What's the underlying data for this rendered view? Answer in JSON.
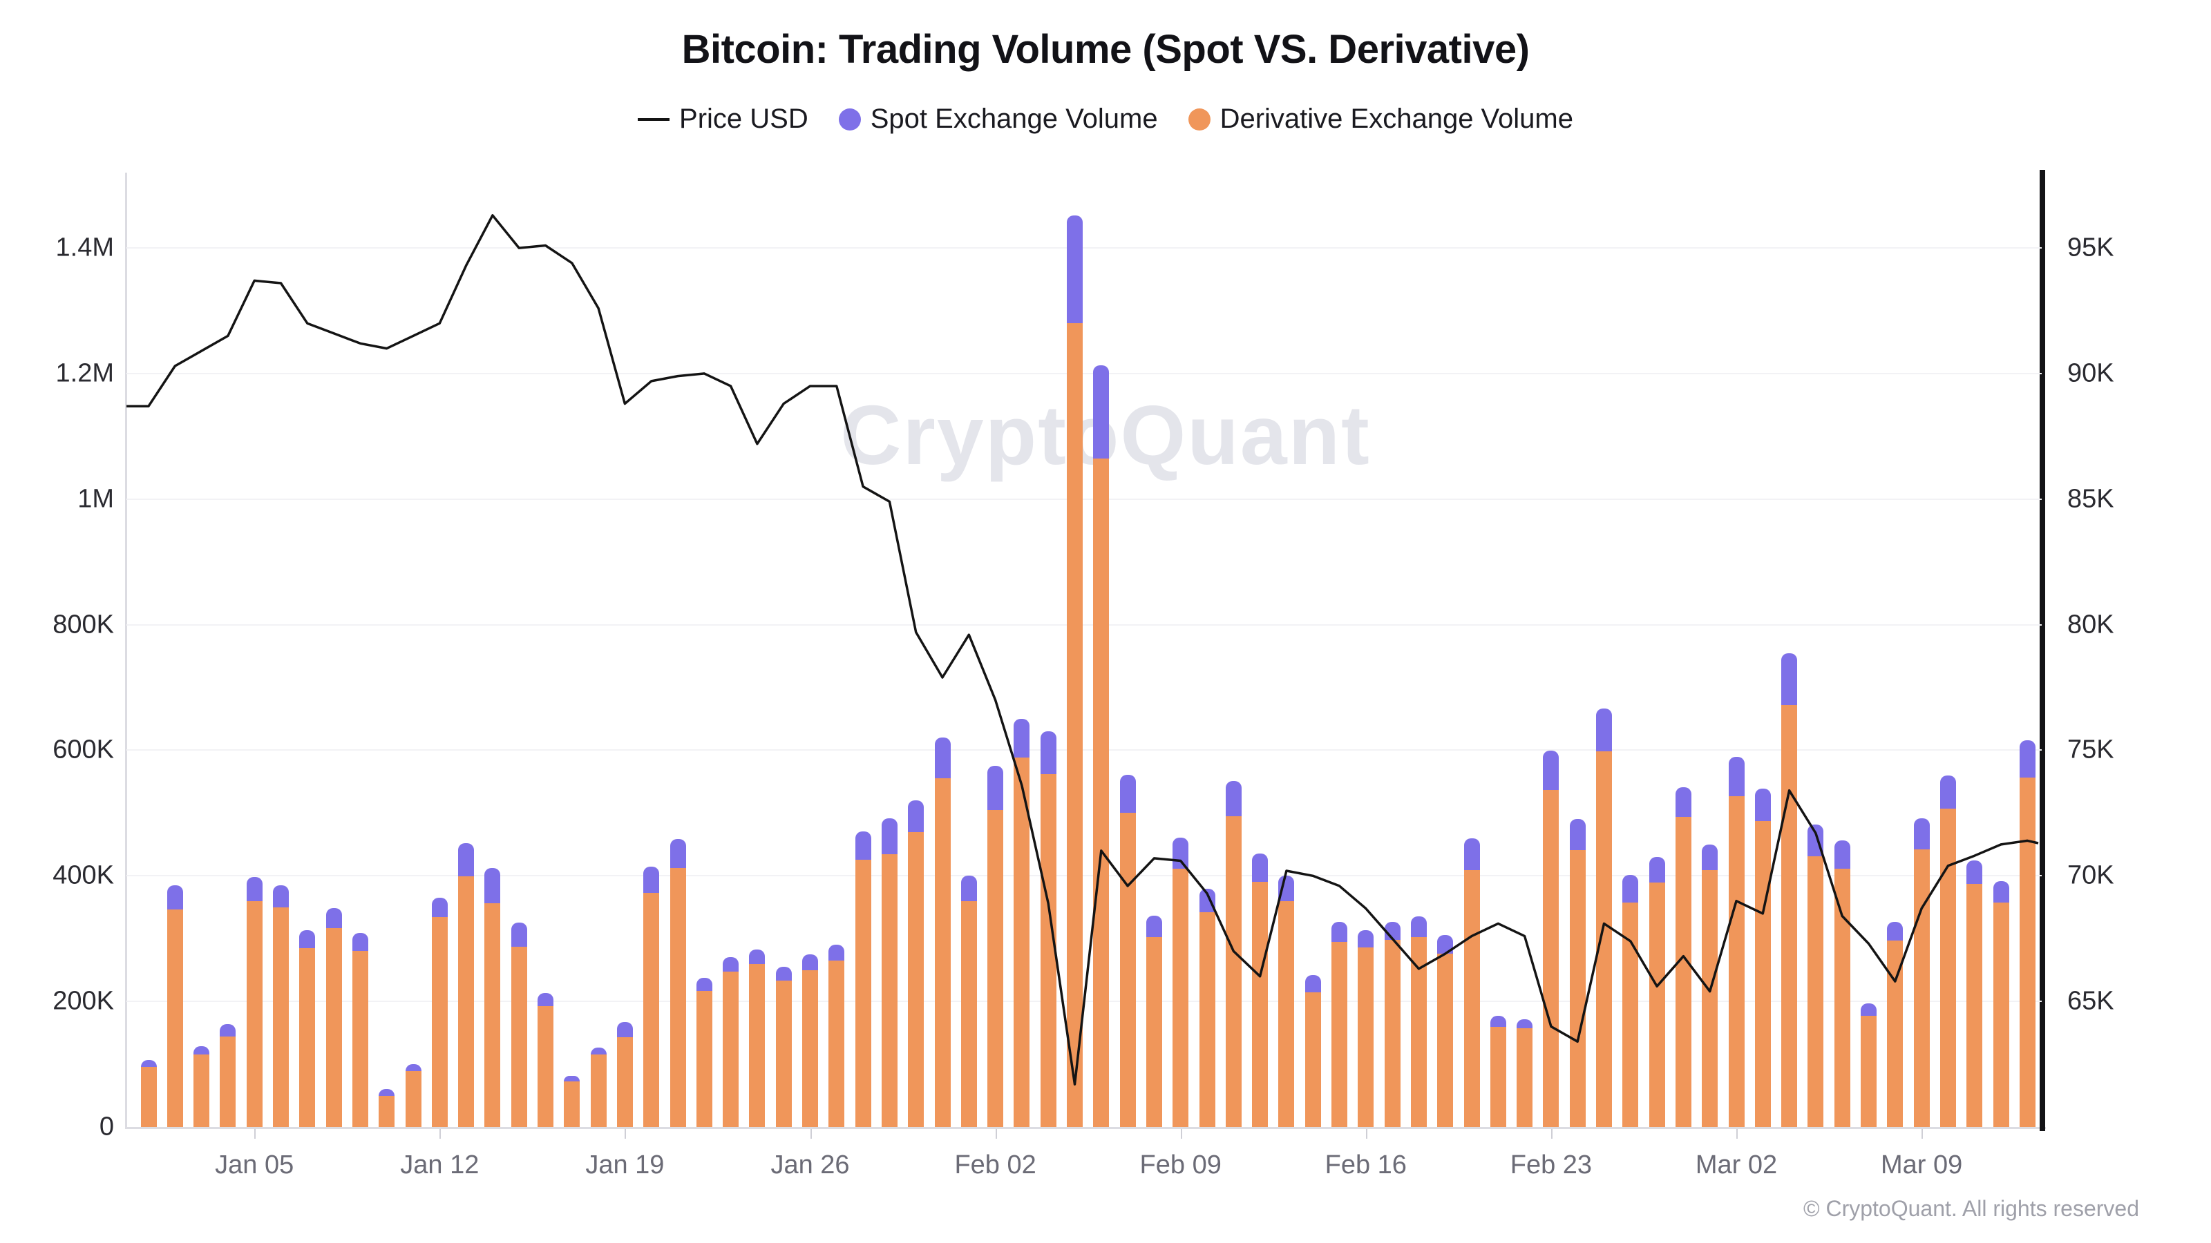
{
  "header": {
    "title": "Bitcoin: Trading Volume (Spot VS. Derivative)",
    "legend": [
      {
        "label": "Price USD",
        "swatch": "line",
        "color": "#141414"
      },
      {
        "label": "Spot Exchange Volume",
        "swatch": "dot",
        "color": "#7E70E8"
      },
      {
        "label": "Derivative Exchange Volume",
        "swatch": "dot",
        "color": "#F0965A"
      }
    ]
  },
  "watermark": "CryptoQuant",
  "footer": {
    "copyright": "© CryptoQuant. All rights reserved"
  },
  "colors": {
    "spot": "#7E70E8",
    "derivative": "#F0965A",
    "price_line": "#141414",
    "gridline": "#f2f2f5",
    "axis_gray": "#dcdce2",
    "axis_black": "#131316"
  },
  "chart_data": {
    "type": "bar",
    "subtype": "stacked-bars-with-line-overlay",
    "title": "Bitcoin: Trading Volume (Spot VS. Derivative)",
    "categories": [
      "Jan 01",
      "Jan 02",
      "Jan 03",
      "Jan 04",
      "Jan 05",
      "Jan 06",
      "Jan 07",
      "Jan 08",
      "Jan 09",
      "Jan 10",
      "Jan 11",
      "Jan 12",
      "Jan 13",
      "Jan 14",
      "Jan 15",
      "Jan 16",
      "Jan 17",
      "Jan 18",
      "Jan 19",
      "Jan 20",
      "Jan 21",
      "Jan 22",
      "Jan 23",
      "Jan 24",
      "Jan 25",
      "Jan 26",
      "Jan 27",
      "Jan 28",
      "Jan 29",
      "Jan 30",
      "Jan 31",
      "Feb 01",
      "Feb 02",
      "Feb 03",
      "Feb 04",
      "Feb 05",
      "Feb 06",
      "Feb 07",
      "Feb 08",
      "Feb 09",
      "Feb 10",
      "Feb 11",
      "Feb 12",
      "Feb 13",
      "Feb 14",
      "Feb 15",
      "Feb 16",
      "Feb 17",
      "Feb 18",
      "Feb 19",
      "Feb 20",
      "Feb 21",
      "Feb 22",
      "Feb 23",
      "Feb 24",
      "Feb 25",
      "Feb 26",
      "Feb 27",
      "Feb 28",
      "Mar 01",
      "Mar 02",
      "Mar 03",
      "Mar 04",
      "Mar 05",
      "Mar 06",
      "Mar 07",
      "Mar 08",
      "Mar 09",
      "Mar 10",
      "Mar 11",
      "Mar 12",
      "Mar 13"
    ],
    "series": [
      {
        "name": "Derivative Exchange Volume",
        "type": "bar",
        "axis": "left",
        "unit": "K",
        "values": [
          96,
          347,
          116,
          144,
          360,
          350,
          285,
          317,
          280,
          50,
          89,
          334,
          399,
          356,
          287,
          192,
          73,
          116,
          143,
          373,
          413,
          217,
          248,
          260,
          233,
          250,
          265,
          426,
          435,
          470,
          555,
          360,
          505,
          588,
          562,
          1280,
          1065,
          500,
          302,
          411,
          342,
          495,
          391,
          360,
          214,
          295,
          286,
          298,
          303,
          276,
          409,
          160,
          157,
          537,
          441,
          598,
          358,
          389,
          494,
          409,
          527,
          487,
          672,
          431,
          411,
          177,
          297,
          442,
          507,
          387,
          358,
          557
        ]
      },
      {
        "name": "Spot Exchange Volume",
        "type": "bar",
        "axis": "left",
        "unit": "K",
        "values": [
          11,
          38,
          13,
          20,
          38,
          35,
          28,
          32,
          29,
          10,
          11,
          31,
          53,
          57,
          39,
          21,
          8,
          11,
          24,
          42,
          46,
          21,
          23,
          23,
          22,
          25,
          25,
          45,
          57,
          50,
          65,
          40,
          70,
          62,
          68,
          172,
          148,
          61,
          35,
          50,
          38,
          56,
          45,
          40,
          28,
          32,
          27,
          29,
          32,
          30,
          51,
          17,
          15,
          63,
          50,
          69,
          44,
          41,
          47,
          41,
          63,
          52,
          82,
          51,
          45,
          20,
          30,
          50,
          53,
          38,
          34,
          59
        ]
      },
      {
        "name": "Price USD",
        "type": "line",
        "axis": "right",
        "unit": "K",
        "values": [
          88.7,
          90.3,
          90.9,
          91.5,
          93.7,
          93.6,
          92.0,
          91.6,
          91.2,
          91.0,
          91.5,
          92.0,
          94.3,
          96.3,
          95.0,
          95.1,
          94.4,
          92.6,
          88.8,
          89.7,
          89.9,
          90.0,
          89.5,
          87.2,
          88.8,
          89.5,
          89.5,
          85.5,
          84.9,
          79.7,
          77.9,
          79.6,
          77.0,
          73.6,
          68.9,
          61.7,
          71.0,
          69.6,
          70.7,
          70.6,
          69.3,
          67.0,
          66.0,
          70.2,
          70.0,
          69.6,
          68.7,
          67.5,
          66.3,
          66.9,
          67.6,
          68.1,
          67.6,
          64.0,
          63.4,
          68.1,
          67.4,
          65.6,
          66.8,
          65.4,
          69.0,
          68.5,
          73.4,
          71.7,
          68.4,
          67.3,
          65.8,
          68.7,
          70.4,
          70.8,
          71.25,
          71.4
        ]
      }
    ],
    "left_axis": {
      "tick_labels": [
        "0",
        "200K",
        "400K",
        "600K",
        "800K",
        "1M",
        "1.2M",
        "1.4M"
      ],
      "tick_values": [
        0,
        200,
        400,
        600,
        800,
        1000,
        1200,
        1400
      ],
      "lim": [
        0,
        1520
      ]
    },
    "right_axis": {
      "tick_labels": [
        "65K",
        "70K",
        "75K",
        "80K",
        "85K",
        "90K",
        "95K"
      ],
      "tick_values": [
        65,
        70,
        75,
        80,
        85,
        90,
        95
      ],
      "lim": [
        60,
        98
      ]
    },
    "x_ticks": {
      "labels": [
        "Jan 05",
        "Jan 12",
        "Jan 19",
        "Jan 26",
        "Feb 02",
        "Feb 09",
        "Feb 16",
        "Feb 23",
        "Mar 02",
        "Mar 09"
      ],
      "category_indices": [
        4,
        11,
        18,
        25,
        32,
        39,
        46,
        53,
        60,
        67
      ]
    },
    "legend_position": "top",
    "grid": "horizontal-only"
  }
}
